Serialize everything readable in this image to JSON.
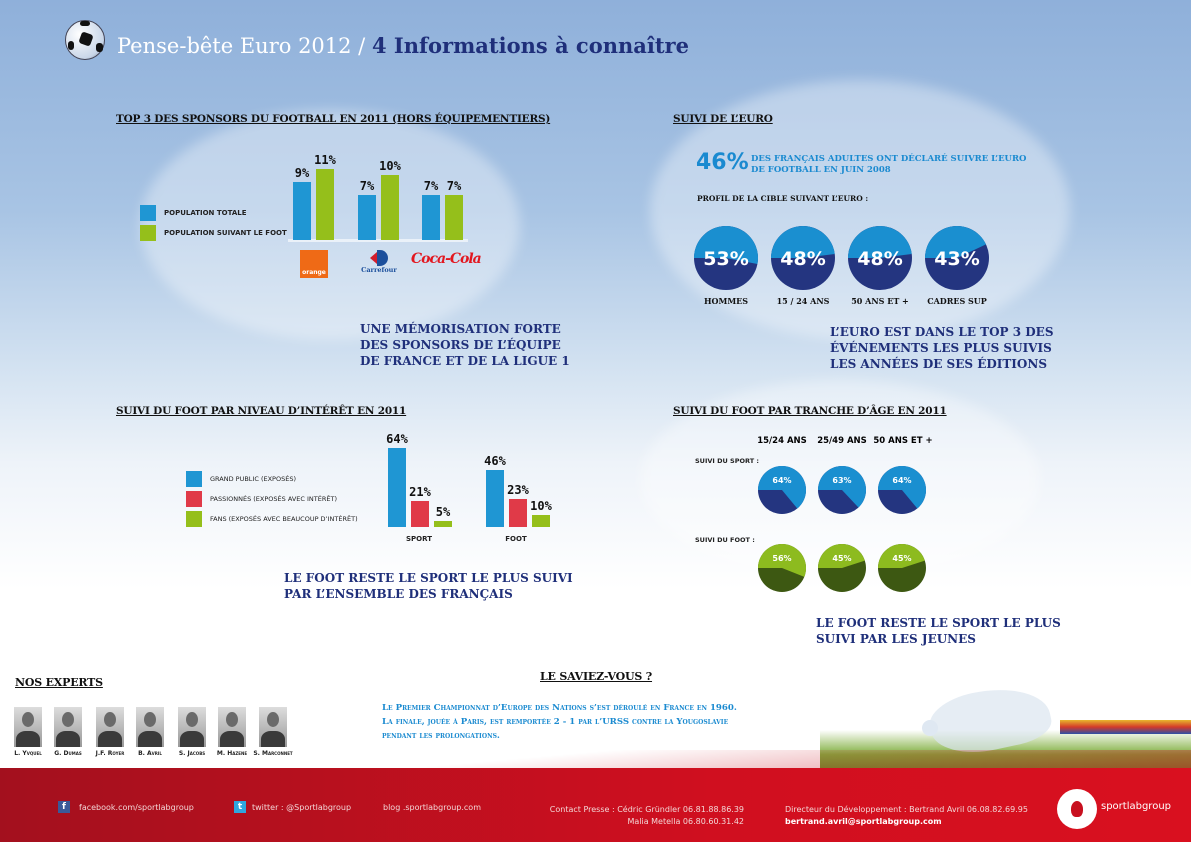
{
  "header": {
    "title_light": "Pense-bête Euro 2012 /",
    "title_bold": "4 Informations à connaître"
  },
  "colors": {
    "blue": "#1f96d3",
    "green": "#95bf1b",
    "red": "#e03a48",
    "navy": "#243580",
    "dark_green": "#3d5812",
    "accent_text": "#1a8ad0",
    "caption": "#1f2f7a",
    "footer_red": "#c8101f"
  },
  "sponsors": {
    "heading": "TOP 3 DES SPONSORS DU FOOTBALL EN 2011 (HORS ÉQUIPEMENTIERS)",
    "legend": [
      "POPULATION TOTALE",
      "POPULATION SUIVANT LE FOOT"
    ],
    "brands": [
      "orange",
      "Carrefour",
      "Coca-Cola"
    ],
    "caption_lines": [
      "UNE MÉMORISATION FORTE",
      "DES SPONSORS DE L’ÉQUIPE",
      "DE FRANCE ET DE LA LIGUE 1"
    ]
  },
  "euro": {
    "heading": "SUIVI DE L’EURO",
    "stat_value": "46%",
    "stat_lines": [
      "DES FRANÇAIS ADULTES ONT DÉCLARÉ SUIVRE L’EURO",
      "DE FOOTBALL EN JUIN 2008"
    ],
    "profile_label": "PROFIL DE LA CIBLE SUIVANT L’EURO :",
    "caption_lines": [
      "L’EURO EST DANS LE TOP 3 DES",
      "ÉVÉNEMENTS LES PLUS SUIVIS",
      "LES ANNÉES DE SES ÉDITIONS"
    ]
  },
  "interest": {
    "heading": "SUIVI DU FOOT PAR NIVEAU D’INTÉRÊT EN 2011",
    "legend": [
      "GRAND PUBLIC (EXPOSÉS)",
      "PASSIONNÉS (EXPOSÉS AVEC INTÉRÊT)",
      "FANS (EXPOSÉS AVEC BEAUCOUP D’INTÉRÊT)"
    ],
    "caption_lines": [
      "LE FOOT RESTE LE SPORT LE PLUS SUIVI",
      "PAR L’ENSEMBLE DES FRANÇAIS"
    ]
  },
  "age": {
    "heading": "SUIVI DU FOOT PAR TRANCHE D’ÂGE EN 2011",
    "columns": [
      "15/24 ANS",
      "25/49 ANS",
      "50 ANS ET +"
    ],
    "row_labels": [
      "SUIVI DU SPORT :",
      "SUIVI DU FOOT :"
    ],
    "caption_lines": [
      "LE FOOT RESTE LE SPORT LE PLUS",
      "SUIVI PAR LES JEUNES"
    ]
  },
  "saviez": {
    "heading": "LE SAVIEZ-VOUS ?",
    "lines": [
      "Le Premier Championnat d’Europe des Nations s’est déroulé en France en 1960.",
      "La finale, jouée à Paris, est remportée 2 - 1 par l’URSS contre la Yougoslavie",
      "pendant les prolongations."
    ]
  },
  "experts": {
    "heading": "NOS EXPERTS",
    "names": [
      "L. Yvquel",
      "G. Dumas",
      "J.F. Royer",
      "B. Avril",
      "S. Jacobs",
      "M. Hazene",
      "S. Marconnet"
    ]
  },
  "footer": {
    "facebook": "facebook.com/sportlabgroup",
    "twitter": "twitter : @Sportlabgroup",
    "blog": "blog .sportlabgroup.com",
    "contact_line1": "Contact Presse : Cédric Gründler   06.81.88.86.39",
    "contact_line2": "Malia Metella   06.80.60.31.42",
    "director_line1": "Directeur du Développement : Bertrand Avril   06.08.82.69.95",
    "director_line2": "bertrand.avril@sportlabgroup.com",
    "logo_text": "sportlabgroup"
  },
  "chart_data": [
    {
      "type": "bar",
      "title": "TOP 3 DES SPONSORS DU FOOTBALL EN 2011 (HORS ÉQUIPEMENTIERS)",
      "categories": [
        "orange",
        "Carrefour",
        "Coca-Cola"
      ],
      "series": [
        {
          "name": "POPULATION TOTALE",
          "values": [
            9,
            7,
            7
          ]
        },
        {
          "name": "POPULATION SUIVANT LE FOOT",
          "values": [
            11,
            10,
            7
          ]
        }
      ],
      "unit": "%",
      "legend": "left"
    },
    {
      "type": "pie",
      "title": "PROFIL DE LA CIBLE SUIVANT L’EURO",
      "categories": [
        "HOMMES",
        "15 / 24 ANS",
        "50 ANS ET +",
        "CADRES SUP"
      ],
      "values": [
        53,
        48,
        48,
        43
      ],
      "unit": "%"
    },
    {
      "type": "bar",
      "title": "SUIVI DU FOOT PAR NIVEAU D’INTÉRÊT EN 2011",
      "categories": [
        "SPORT",
        "FOOT"
      ],
      "series": [
        {
          "name": "GRAND PUBLIC (EXPOSÉS)",
          "values": [
            64,
            46
          ]
        },
        {
          "name": "PASSIONNÉS (EXPOSÉS AVEC INTÉRÊT)",
          "values": [
            21,
            23
          ]
        },
        {
          "name": "FANS (EXPOSÉS AVEC BEAUCOUP D’INTÉRÊT)",
          "values": [
            5,
            10
          ]
        }
      ],
      "unit": "%",
      "legend": "left"
    },
    {
      "type": "pie",
      "title": "SUIVI DU FOOT PAR TRANCHE D’ÂGE EN 2011",
      "categories": [
        "15/24 ANS",
        "25/49 ANS",
        "50 ANS ET +"
      ],
      "series": [
        {
          "name": "SUIVI DU SPORT",
          "values": [
            64,
            63,
            64
          ]
        },
        {
          "name": "SUIVI DU FOOT",
          "values": [
            56,
            45,
            45
          ]
        }
      ],
      "unit": "%"
    }
  ]
}
